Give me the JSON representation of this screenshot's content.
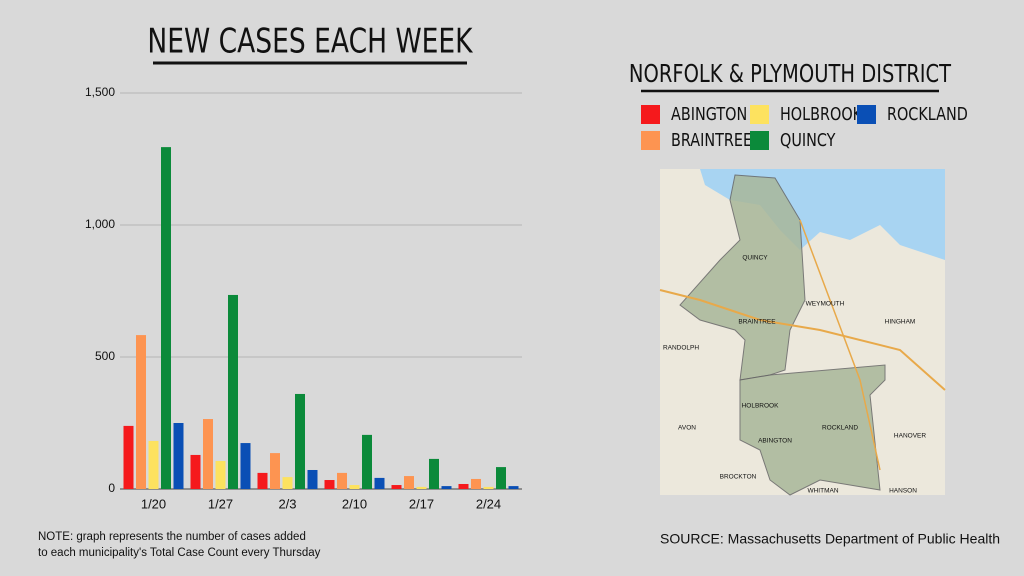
{
  "chart_data": {
    "type": "bar",
    "title": "NEW CASES EACH WEEK",
    "legend_title": "NORFOLK & PLYMOUTH DISTRICT",
    "categories": [
      "1/20",
      "1/27",
      "2/3",
      "2/10",
      "2/17",
      "2/24"
    ],
    "series": [
      {
        "name": "ABINGTON",
        "color": "#f5191c",
        "values": [
          239,
          129,
          61,
          34,
          15,
          19
        ]
      },
      {
        "name": "BRAINTREE",
        "color": "#fd9451",
        "values": [
          583,
          265,
          136,
          61,
          49,
          38
        ]
      },
      {
        "name": "HOLBROOK",
        "color": "#fde25f",
        "values": [
          182,
          106,
          45,
          15,
          8,
          8
        ]
      },
      {
        "name": "QUINCY",
        "color": "#0b8a3a",
        "values": [
          1295,
          735,
          360,
          205,
          114,
          83
        ]
      },
      {
        "name": "ROCKLAND",
        "color": "#0a4fb5",
        "values": [
          250,
          174,
          72,
          42,
          11,
          11
        ]
      }
    ],
    "ylim": [
      0,
      1500
    ],
    "yticks": [
      0,
      500,
      {
        "value": 1000,
        "label": "1,000"
      },
      {
        "value": 1500,
        "label": "1,500"
      }
    ],
    "grid": true
  },
  "note": "NOTE: graph represents the number of cases added to each municipality's Total Case Count every Thursday",
  "source": "SOURCE: Massachusetts Department of Public Health",
  "map": {
    "labels": [
      "QUINCY",
      "WEYMOUTH",
      "BRAINTREE",
      "HINGHAM",
      "RANDOLPH",
      "HOLBROOK",
      "AVON",
      "ABINGTON",
      "ROCKLAND",
      "HANOVER",
      "BROCKTON",
      "WHITMAN",
      "HANSON"
    ]
  }
}
